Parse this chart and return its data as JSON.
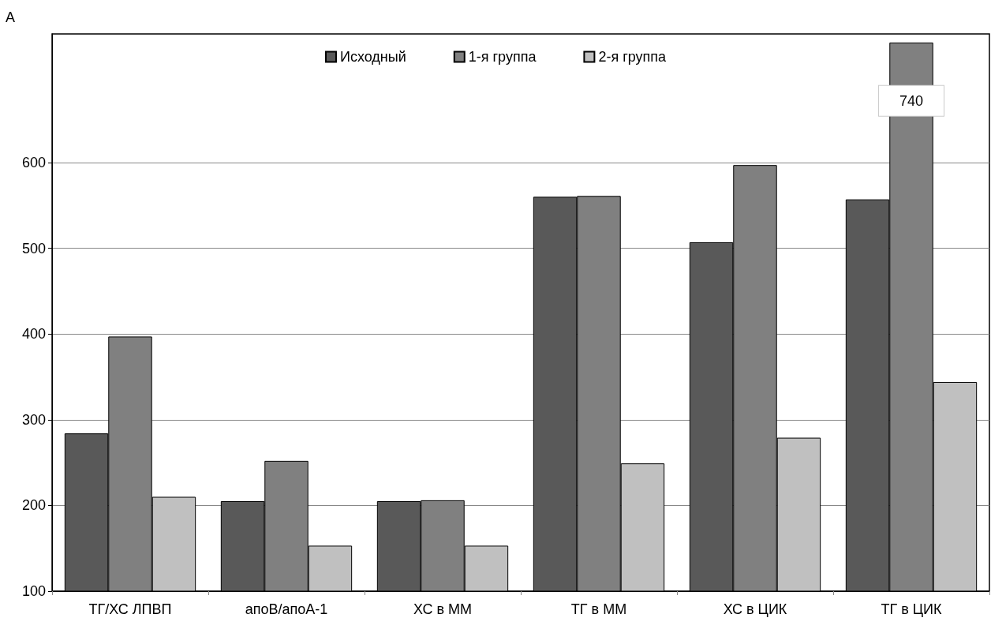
{
  "chart_data": {
    "type": "bar",
    "title": "A",
    "categories": [
      "ТГ/ХС ЛПВП",
      "апоB/апоA-1",
      "ХС в ММ",
      "ТГ в ММ",
      "ХС в ЦИК",
      "ТГ в ЦИК"
    ],
    "series": [
      {
        "name": "Исходный",
        "color": "#595959",
        "values": [
          284,
          205,
          205,
          560,
          507,
          557
        ]
      },
      {
        "name": "1-я группа",
        "color": "#808080",
        "values": [
          397,
          252,
          206,
          561,
          597,
          740
        ],
        "value_labels": [
          null,
          null,
          null,
          null,
          null,
          "740"
        ]
      },
      {
        "name": "2-я группа",
        "color": "#c0c0c0",
        "values": [
          210,
          153,
          153,
          249,
          279,
          344
        ]
      }
    ],
    "ylim": [
      100,
      750
    ],
    "yticks": [
      100,
      200,
      300,
      400,
      500,
      600
    ],
    "grid": "y",
    "legend": "top"
  }
}
